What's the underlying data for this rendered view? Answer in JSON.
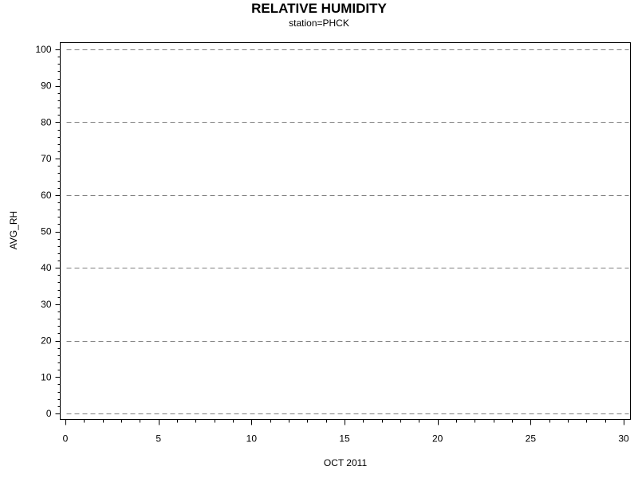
{
  "chart_data": {
    "type": "line",
    "title": "RELATIVE HUMIDITY",
    "subtitle": "station=PHCK",
    "xlabel": "OCT 2011",
    "ylabel": "AVG_RH",
    "xlim": [
      0,
      30
    ],
    "ylim": [
      0,
      100
    ],
    "x_ticks": [
      0,
      5,
      10,
      15,
      20,
      25,
      30
    ],
    "y_ticks": [
      0,
      10,
      20,
      30,
      40,
      50,
      60,
      70,
      80,
      90,
      100
    ],
    "reference_lines_y": [
      0,
      20,
      40,
      60,
      80,
      100
    ],
    "grid": "dashed horizontal reference lines",
    "series": []
  }
}
